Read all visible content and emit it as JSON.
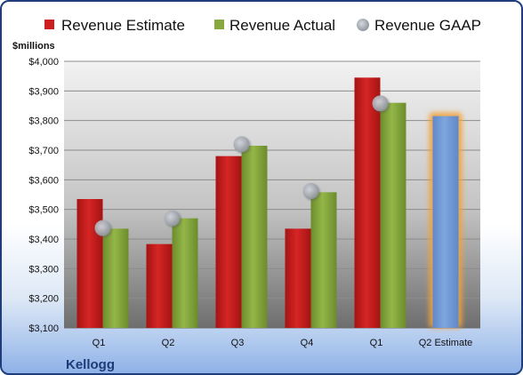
{
  "chart_data": {
    "type": "bar",
    "company": "Kellogg",
    "unit_label": "$millions",
    "categories": [
      "Q1",
      "Q2",
      "Q3",
      "Q4",
      "Q1",
      "Q2 Estimate"
    ],
    "y_ticks": [
      "$3,100",
      "$3,200",
      "$3,300",
      "$3,400",
      "$3,500",
      "$3,600",
      "$3,700",
      "$3,800",
      "$3,900",
      "$4,000"
    ],
    "ylim": [
      3100,
      4000
    ],
    "grid": true,
    "legend_position": "top",
    "series": [
      {
        "name": "Revenue Estimate",
        "kind": "bar",
        "color": "#cc1f1f",
        "values": [
          3535,
          3383,
          3680,
          3435,
          3945,
          3815
        ],
        "highlight_last": true,
        "highlight_color": "#6f98d6"
      },
      {
        "name": "Revenue Actual",
        "kind": "bar",
        "color": "#86a83e",
        "values": [
          3435,
          3470,
          3715,
          3558,
          3860,
          null
        ]
      },
      {
        "name": "Revenue GAAP",
        "kind": "marker",
        "color": "#a8adb6",
        "values": [
          3437,
          3470,
          3720,
          3562,
          3858,
          null
        ]
      }
    ]
  }
}
